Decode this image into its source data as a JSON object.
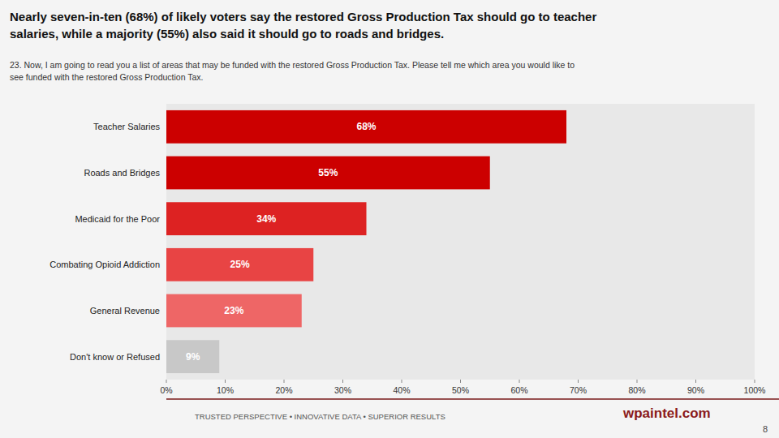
{
  "chart_data": {
    "type": "bar",
    "orientation": "horizontal",
    "title": [
      "Nearly seven-in-ten (68%) of likely voters say the restored Gross Production Tax should go to teacher",
      "salaries, while a majority (55%) also said it should go to roads and bridges."
    ],
    "subtitle": [
      "23. Now, I am going to read you a list of areas that may be funded with the restored Gross Production Tax. Please tell me which area you would like to",
      "see funded with the restored Gross Production Tax."
    ],
    "categories": [
      "Teacher Salaries",
      "Roads and Bridges",
      "Medicaid for the Poor",
      "Combating Opioid Addiction",
      "General Revenue",
      "Don't know or Refused"
    ],
    "values": [
      68,
      55,
      34,
      25,
      23,
      9
    ],
    "value_labels": [
      "68%",
      "55%",
      "34%",
      "25%",
      "23%",
      "9%"
    ],
    "data_labels": true,
    "colors": [
      "#cc0000",
      "#cc0000",
      "#dd2222",
      "#e84444",
      "#ee6666",
      "#c8c8c8"
    ],
    "xlim": [
      0,
      100
    ],
    "xticks": [
      {
        "value": 0,
        "label": "0%"
      },
      {
        "value": 10,
        "label": "10%"
      },
      {
        "value": 20,
        "label": "20%"
      },
      {
        "value": 30,
        "label": "30%"
      },
      {
        "value": 40,
        "label": "40%"
      },
      {
        "value": 50,
        "label": "50%"
      },
      {
        "value": 60,
        "label": "60%"
      },
      {
        "value": 70,
        "label": "70%"
      },
      {
        "value": 80,
        "label": "80%"
      },
      {
        "value": 90,
        "label": "90%"
      },
      {
        "value": 100,
        "label": "100%"
      }
    ],
    "grid": false,
    "annotations": [
      "TRUSTED PERSPECTIVE  •  INNOVATIVE DATA  •  SUPERIOR RESULTS",
      "wpaintel.com",
      "8"
    ]
  }
}
